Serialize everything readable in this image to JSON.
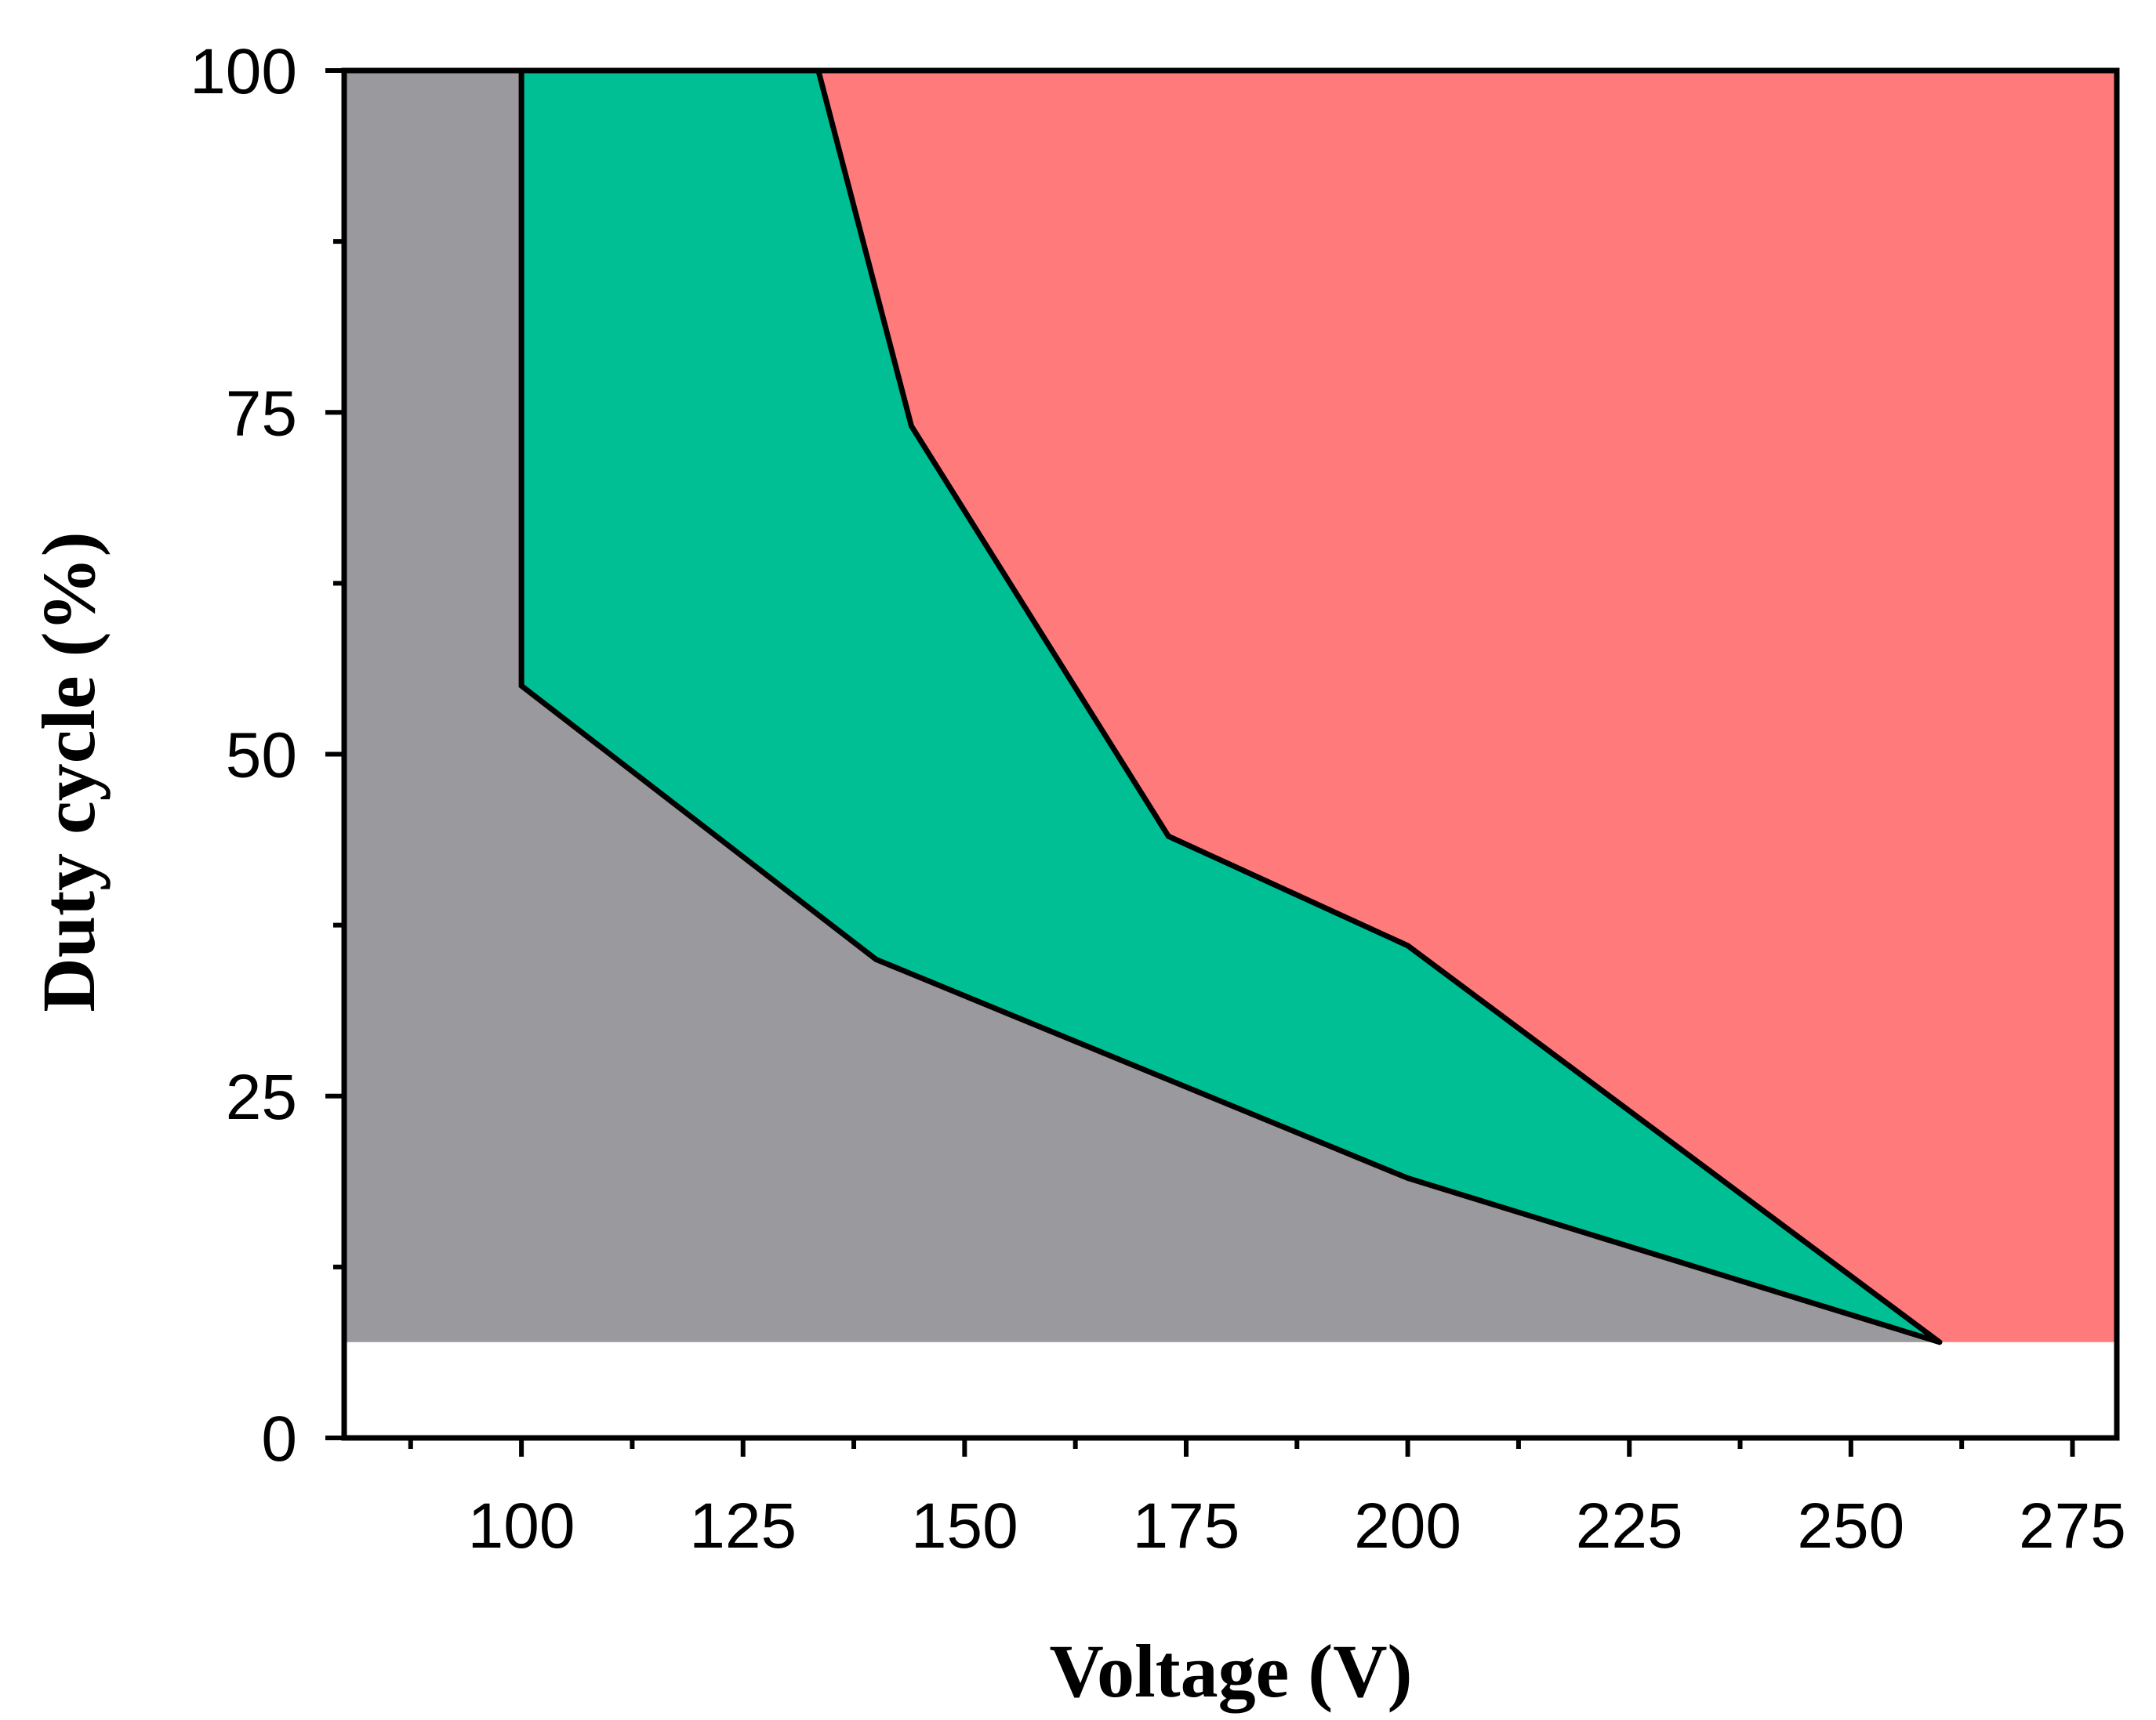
{
  "chart_data": {
    "type": "area",
    "title": "",
    "xlabel": "Voltage (V)",
    "ylabel": "Duty cycle (%)",
    "xlim": [
      80,
      280
    ],
    "ylim": [
      0,
      100
    ],
    "x_ticks": [
      100,
      125,
      150,
      175,
      200,
      225,
      250,
      275
    ],
    "x_tick_labels": [
      "100",
      "125",
      "150",
      "175",
      "200",
      "225",
      "250",
      "275"
    ],
    "x_minor_ticks": [
      87.5,
      112.5,
      137.5,
      162.5,
      187.5,
      212.5,
      237.5,
      262.5
    ],
    "y_ticks": [
      0,
      25,
      50,
      75,
      100
    ],
    "y_tick_labels": [
      "0",
      "25",
      "50",
      "75",
      "100"
    ],
    "y_minor_ticks": [
      12.5,
      37.5,
      62.5,
      87.5
    ],
    "grid": false,
    "regions": [
      {
        "name": "gray-region",
        "color": "#9a9a9e",
        "points": [
          [
            80,
            7
          ],
          [
            80,
            100
          ],
          [
            100,
            100
          ],
          [
            100,
            55
          ],
          [
            140,
            35
          ],
          [
            200,
            19
          ],
          [
            260,
            7
          ]
        ]
      },
      {
        "name": "green-region",
        "color": "#00bf94",
        "points": [
          [
            100,
            100
          ],
          [
            133.5,
            100
          ],
          [
            144,
            74
          ],
          [
            173,
            44
          ],
          [
            200,
            36
          ],
          [
            260,
            7
          ],
          [
            200,
            19
          ],
          [
            140,
            35
          ],
          [
            100,
            55
          ]
        ]
      },
      {
        "name": "red-region",
        "color": "#ff7b7b",
        "points": [
          [
            133.5,
            100
          ],
          [
            280,
            100
          ],
          [
            280,
            7
          ],
          [
            260,
            7
          ],
          [
            200,
            36
          ],
          [
            173,
            44
          ],
          [
            144,
            74
          ]
        ]
      }
    ],
    "boundaries": [
      {
        "name": "lower-boundary",
        "x": [
          100,
          100,
          140,
          200,
          260
        ],
        "y": [
          100,
          55,
          35,
          19,
          7
        ]
      },
      {
        "name": "upper-boundary",
        "x": [
          133.5,
          144,
          173,
          200,
          260
        ],
        "y": [
          100,
          74,
          44,
          36,
          7
        ]
      }
    ],
    "baseline_duty_cycle": 7
  }
}
